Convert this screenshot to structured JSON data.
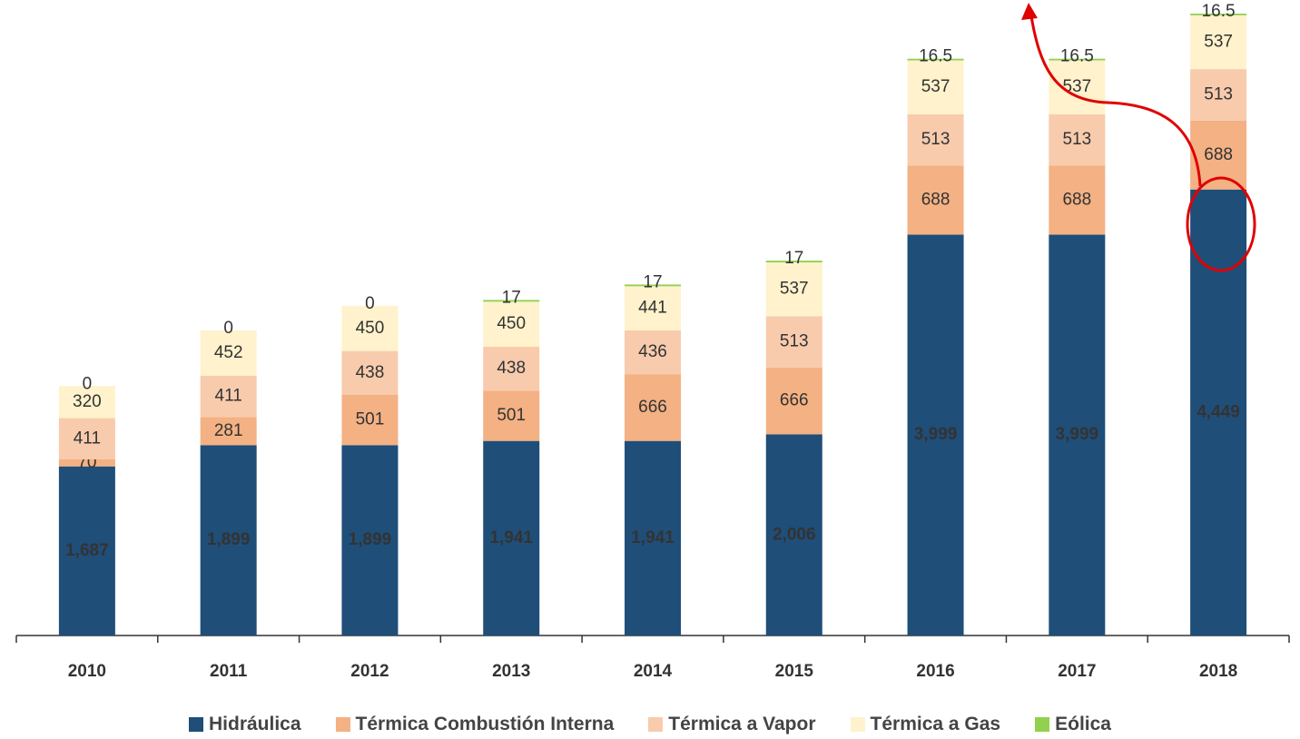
{
  "chart_data": {
    "type": "stacked_bar",
    "categories": [
      "2010",
      "2011",
      "2012",
      "2013",
      "2014",
      "2015",
      "2016",
      "2017",
      "2018"
    ],
    "series": [
      {
        "name": "Hidráulica",
        "color": "#1f4e79",
        "values": [
          1687,
          1899,
          1899,
          1941,
          1941,
          2006,
          3999,
          3999,
          4449
        ],
        "value_labels": [
          "1,687",
          "1,899",
          "1,899",
          "1,941",
          "1,941",
          "2,006",
          "3,999",
          "3,999",
          "4,449"
        ]
      },
      {
        "name": "Térmica Combustión Interna",
        "color": "#f4b183",
        "values": [
          70,
          281,
          501,
          501,
          666,
          666,
          688,
          688,
          688
        ]
      },
      {
        "name": "Térmica a Vapor",
        "color": "#f8cbad",
        "values": [
          411,
          411,
          438,
          438,
          436,
          513,
          513,
          513,
          513
        ]
      },
      {
        "name": "Térmica a Gas",
        "color": "#fff2cc",
        "values": [
          320,
          452,
          450,
          450,
          441,
          537,
          537,
          537,
          537
        ]
      },
      {
        "name": "Eólica",
        "color": "#92d050",
        "values": [
          0,
          0,
          0,
          17,
          17,
          17,
          16.5,
          16.5,
          16.5
        ]
      }
    ],
    "legend": "bottom"
  }
}
